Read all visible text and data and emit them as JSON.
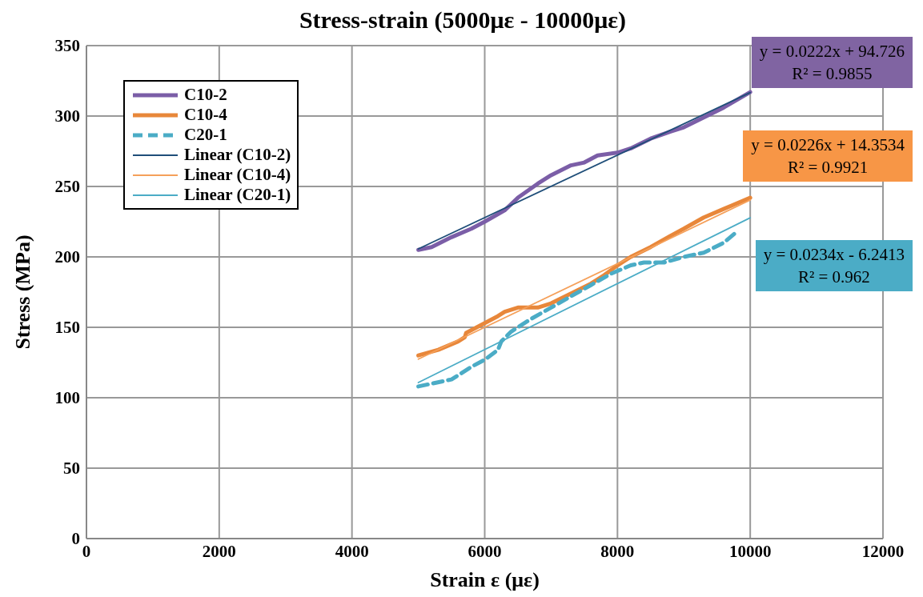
{
  "chart_data": {
    "type": "line",
    "title": "Stress-strain (5000με - 10000με)",
    "xlabel": "Strain ε (με)",
    "ylabel": "Stress (MPa)",
    "xlim": [
      0,
      12000
    ],
    "xticks": [
      0,
      2000,
      4000,
      6000,
      8000,
      10000,
      12000
    ],
    "ylim": [
      0,
      350
    ],
    "yticks": [
      0,
      50,
      100,
      150,
      200,
      250,
      300,
      350
    ],
    "grid": true,
    "legend": "top left",
    "marker": "none",
    "series": [
      {
        "name": "C10-2",
        "color": "#7b5ea7",
        "line_style": "solid",
        "x": [
          5000,
          5200,
          5500,
          5800,
          6000,
          6300,
          6500,
          6800,
          7000,
          7300,
          7500,
          7700,
          8000,
          8200,
          8500,
          8800,
          9000,
          9300,
          9600,
          10000
        ],
        "values": [
          205,
          207,
          214,
          220,
          225,
          233,
          242,
          252,
          258,
          265,
          267,
          272,
          274,
          277,
          284,
          289,
          292,
          299,
          306,
          317
        ]
      },
      {
        "name": "C10-4",
        "color": "#e8873a",
        "line_style": "solid",
        "x": [
          5000,
          5300,
          5600,
          5700,
          5720,
          6000,
          6200,
          6300,
          6500,
          6800,
          7000,
          7300,
          7600,
          7800,
          8000,
          8200,
          8500,
          8800,
          9000,
          9300,
          9600,
          10000
        ],
        "values": [
          130,
          134,
          140,
          143,
          146,
          153,
          158,
          161,
          164,
          164,
          167,
          174,
          181,
          187,
          194,
          200,
          207,
          215,
          220,
          228,
          234,
          242
        ]
      },
      {
        "name": "C20-1",
        "color": "#4bacc6",
        "line_style": "dashed",
        "x": [
          5000,
          5200,
          5500,
          5800,
          6000,
          6200,
          6250,
          6400,
          6700,
          7000,
          7300,
          7600,
          7900,
          8200,
          8400,
          8700,
          9000,
          9300,
          9600,
          9800
        ],
        "values": [
          108,
          110,
          113,
          122,
          127,
          134,
          140,
          147,
          156,
          164,
          172,
          180,
          188,
          194,
          196,
          196,
          200,
          203,
          210,
          218
        ]
      },
      {
        "name": "Linear (C10-2)",
        "color": "#1f4e79",
        "line_style": "solid",
        "x": [
          5000,
          10000
        ],
        "values": [
          205.7,
          316.7
        ]
      },
      {
        "name": "Linear (C10-4)",
        "color": "#f5a05a",
        "line_style": "solid",
        "x": [
          5000,
          10000
        ],
        "values": [
          127.4,
          240.4
        ]
      },
      {
        "name": "Linear (C20-1)",
        "color": "#4bacc6",
        "line_style": "solid",
        "x": [
          5000,
          10000
        ],
        "values": [
          110.8,
          227.8
        ]
      }
    ],
    "annotations": [
      "y = 0.0222x + 94.726\nR² = 0.9855",
      "y = 0.0226x + 14.3534\nR² = 0.9921",
      "y = 0.0234x - 6.2413\nR² = 0.962"
    ]
  }
}
